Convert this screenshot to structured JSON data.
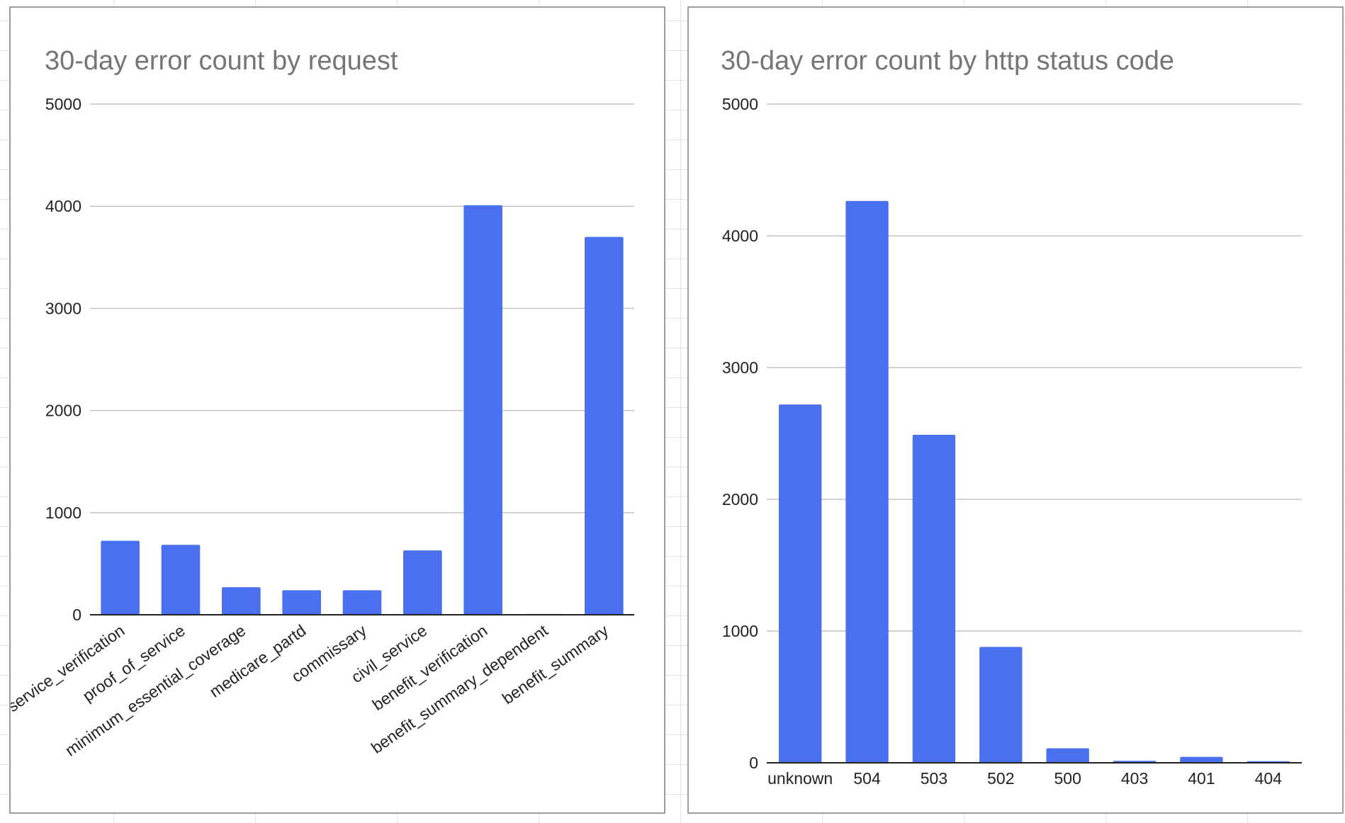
{
  "charts": {
    "colors": {
      "bar": "#4a70ef"
    }
  },
  "chart_data": [
    {
      "type": "bar",
      "title": "30-day error count by request",
      "xlabel": "",
      "ylabel": "",
      "categories": [
        "service_verification",
        "proof_of_service",
        "minimum_essential_coverage",
        "medicare_partd",
        "commissary",
        "civil_service",
        "benefit_verification",
        "benefit_summary_dependent",
        "benefit_summary"
      ],
      "values": [
        725,
        685,
        270,
        240,
        240,
        630,
        4010,
        8,
        3700
      ],
      "yticks": [
        0,
        1000,
        2000,
        3000,
        4000,
        5000
      ],
      "ylim": [
        0,
        5000
      ],
      "grid": true,
      "x_labels_rotated": true
    },
    {
      "type": "bar",
      "title": "30-day error count by http status code",
      "xlabel": "",
      "ylabel": "",
      "categories": [
        "unknown",
        "504",
        "503",
        "502",
        "500",
        "403",
        "401",
        "404"
      ],
      "values": [
        2720,
        4265,
        2490,
        880,
        110,
        15,
        45,
        12
      ],
      "yticks": [
        0,
        1000,
        2000,
        3000,
        4000,
        5000
      ],
      "ylim": [
        0,
        5000
      ],
      "grid": true,
      "x_labels_rotated": false
    }
  ]
}
